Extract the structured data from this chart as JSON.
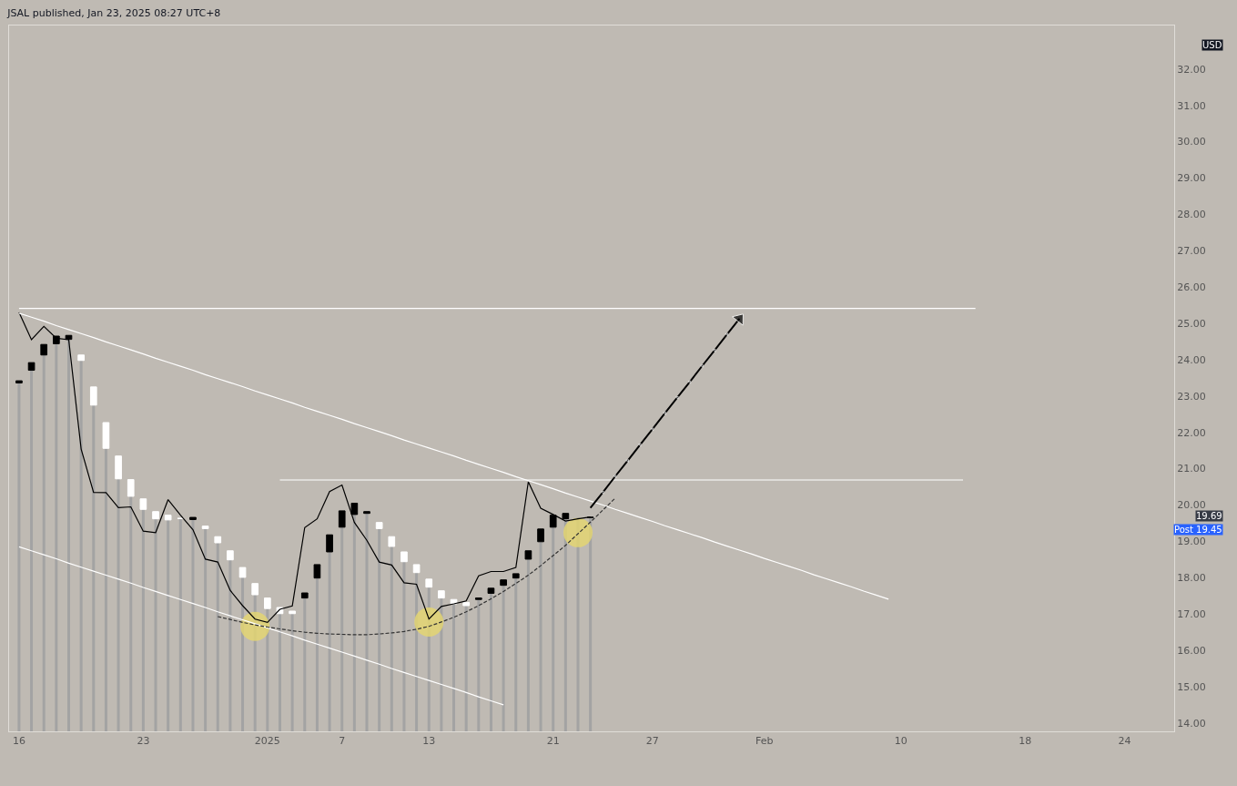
{
  "chart_data": {
    "type": "candlestick",
    "title": "JSAL published, Jan 23, 2025 08:27 UTC+8",
    "categories": [
      "16",
      null,
      null,
      null,
      null,
      null,
      null,
      null,
      null,
      null,
      "23",
      null,
      null,
      null,
      null,
      null,
      null,
      null,
      null,
      null,
      "2025",
      null,
      null,
      null,
      null,
      null,
      "7",
      null,
      null,
      null,
      null,
      null,
      null,
      "13",
      null,
      null,
      null,
      null,
      null,
      null,
      null,
      null,
      null,
      "21",
      null,
      null,
      null,
      null,
      null,
      null,
      null,
      "27",
      null,
      null,
      null,
      null,
      null,
      null,
      null,
      null,
      "Feb",
      null,
      null,
      null,
      null,
      null,
      null,
      null,
      null,
      null,
      null,
      "10",
      null,
      null,
      null,
      null,
      null,
      null,
      null,
      null,
      null,
      "18",
      null,
      null,
      null,
      null,
      null,
      null,
      null,
      "24",
      null,
      null,
      null,
      null
    ],
    "ohlc": [
      [
        23.36,
        23.42,
        23.36,
        23.42
      ],
      [
        23.71,
        23.92,
        23.71,
        23.92
      ],
      [
        24.13,
        24.42,
        24.13,
        24.42
      ],
      [
        24.44,
        24.65,
        24.44,
        24.65
      ],
      [
        24.56,
        24.67,
        24.56,
        24.67
      ],
      [
        24.13,
        24.13,
        23.98,
        23.98
      ],
      [
        23.25,
        23.25,
        22.75,
        22.75
      ],
      [
        22.27,
        22.27,
        21.56,
        21.56
      ],
      [
        21.35,
        21.35,
        20.72,
        20.72
      ],
      [
        20.7,
        20.7,
        20.24,
        20.24
      ],
      [
        20.17,
        20.17,
        19.88,
        19.88
      ],
      [
        19.82,
        19.82,
        19.62,
        19.62
      ],
      [
        19.72,
        19.72,
        19.59,
        19.59
      ],
      [
        19.63,
        19.63,
        19.63,
        19.63
      ],
      [
        19.6,
        19.66,
        19.6,
        19.66
      ],
      [
        19.42,
        19.42,
        19.35,
        19.35
      ],
      [
        19.13,
        19.13,
        18.96,
        18.96
      ],
      [
        18.74,
        18.74,
        18.49,
        18.49
      ],
      [
        18.28,
        18.28,
        18.01,
        18.01
      ],
      [
        17.84,
        17.84,
        17.53,
        17.53
      ],
      [
        17.44,
        17.44,
        17.15,
        17.15
      ],
      [
        17.18,
        17.18,
        17.01,
        17.01
      ],
      [
        17.08,
        17.08,
        17.01,
        17.01
      ],
      [
        17.44,
        17.58,
        17.44,
        17.58
      ],
      [
        17.99,
        18.36,
        17.99,
        18.36
      ],
      [
        18.71,
        19.18,
        18.71,
        19.18
      ],
      [
        19.39,
        19.84,
        19.39,
        19.84
      ],
      [
        19.74,
        20.05,
        19.74,
        20.05
      ],
      [
        19.77,
        19.82,
        19.77,
        19.82
      ],
      [
        19.52,
        19.52,
        19.35,
        19.35
      ],
      [
        19.13,
        19.13,
        18.86,
        18.86
      ],
      [
        18.71,
        18.71,
        18.44,
        18.44
      ],
      [
        18.36,
        18.36,
        18.14,
        18.14
      ],
      [
        17.96,
        17.96,
        17.74,
        17.74
      ],
      [
        17.64,
        17.64,
        17.44,
        17.44
      ],
      [
        17.4,
        17.4,
        17.28,
        17.28
      ],
      [
        17.32,
        17.32,
        17.23,
        17.23
      ],
      [
        17.4,
        17.44,
        17.4,
        17.44
      ],
      [
        17.57,
        17.71,
        17.57,
        17.71
      ],
      [
        17.79,
        17.94,
        17.79,
        17.94
      ],
      [
        17.99,
        18.11,
        17.99,
        18.11
      ],
      [
        18.51,
        18.74,
        18.51,
        18.74
      ],
      [
        18.99,
        19.34,
        18.99,
        19.34
      ],
      [
        19.39,
        19.72,
        19.39,
        19.72
      ],
      [
        19.62,
        19.77,
        19.62,
        19.77
      ],
      null,
      [
        19.66,
        19.66,
        19.66,
        19.66
      ],
      null,
      null,
      null,
      null,
      null,
      null,
      null,
      null,
      null,
      null,
      null,
      null,
      null,
      null,
      null,
      null,
      null,
      null,
      null,
      null,
      null,
      null,
      null,
      null,
      null,
      null,
      null,
      null,
      null,
      null,
      null,
      null,
      null,
      null,
      null,
      null,
      null,
      null,
      null,
      null,
      null,
      null,
      null,
      null,
      null,
      null,
      null
    ],
    "colors": [
      "#000000",
      "#000000",
      "#000000",
      "#000000",
      "#000000",
      "#ffffff",
      "#ffffff",
      "#ffffff",
      "#ffffff",
      "#ffffff",
      "#ffffff",
      "#ffffff",
      "#ffffff",
      "#ffffff",
      "#000000",
      "#ffffff",
      "#ffffff",
      "#ffffff",
      "#ffffff",
      "#ffffff",
      "#ffffff",
      "#ffffff",
      "#ffffff",
      "#000000",
      "#000000",
      "#000000",
      "#000000",
      "#000000",
      "#000000",
      "#ffffff",
      "#ffffff",
      "#ffffff",
      "#ffffff",
      "#ffffff",
      "#ffffff",
      "#ffffff",
      "#ffffff",
      "#000000",
      "#000000",
      "#000000",
      "#000000",
      "#000000",
      "#000000",
      "#000000",
      "#000000",
      null,
      "#000000",
      null,
      null,
      null,
      null,
      null,
      null,
      null,
      null,
      null,
      null,
      null,
      null,
      null,
      null,
      null,
      null,
      null,
      null,
      null,
      null,
      null,
      null,
      null,
      null,
      null,
      null,
      null,
      null,
      null,
      null,
      null,
      null,
      null,
      null,
      null,
      null,
      null,
      null,
      null,
      null,
      null,
      null,
      null,
      null,
      null,
      null,
      null
    ],
    "series": [
      {
        "type": "bar",
        "color": "#a3a3a3",
        "values": [
          23.36,
          23.71,
          24.13,
          24.44,
          24.56,
          23.98,
          22.75,
          21.56,
          20.72,
          20.24,
          19.88,
          19.62,
          19.59,
          19.63,
          19.6,
          19.35,
          18.96,
          18.49,
          18.01,
          17.53,
          17.15,
          17.01,
          17.01,
          17.44,
          17.99,
          18.71,
          19.39,
          19.74,
          19.77,
          19.35,
          18.86,
          18.44,
          18.14,
          17.74,
          17.44,
          17.28,
          17.23,
          17.4,
          17.57,
          17.79,
          17.99,
          18.51,
          18.99,
          19.39,
          19.62,
          19.66,
          19.66,
          null,
          null,
          null,
          null,
          null,
          null,
          null,
          null,
          null,
          null,
          null,
          null,
          null,
          null,
          null,
          null,
          null,
          null,
          null,
          null,
          null,
          null,
          null,
          null,
          null,
          null,
          null,
          null,
          null,
          null,
          null,
          null,
          null,
          null,
          null,
          null,
          null,
          null,
          null,
          null,
          null,
          null,
          null,
          null,
          null,
          null,
          null
        ]
      },
      {
        "type": "line",
        "color": "#000000",
        "values": [
          25.3,
          24.55,
          24.92,
          24.59,
          24.55,
          21.54,
          20.35,
          20.34,
          19.93,
          19.95,
          19.28,
          19.24,
          20.15,
          19.72,
          19.32,
          18.51,
          18.43,
          17.65,
          17.23,
          16.86,
          16.77,
          17.13,
          17.22,
          19.38,
          19.62,
          20.37,
          20.55,
          19.52,
          19.03,
          18.43,
          18.35,
          17.86,
          17.82,
          16.86,
          17.21,
          17.28,
          17.36,
          18.05,
          18.17,
          18.17,
          18.28,
          20.64,
          19.91,
          19.74,
          19.56,
          19.62,
          19.67,
          null,
          null,
          null,
          null,
          null,
          null,
          null,
          null,
          null,
          null,
          null,
          null,
          null,
          null,
          null,
          null,
          null,
          null,
          null,
          null,
          null,
          null,
          null,
          null,
          null,
          null,
          null,
          null,
          null,
          null,
          null,
          null,
          null,
          null,
          null,
          null,
          null,
          null,
          null,
          null,
          null,
          null,
          null,
          null,
          null,
          null,
          null
        ]
      },
      {
        "type": "line",
        "color": "#ffffff",
        "values": [
          25.41,
          25.41,
          25.41,
          25.41,
          25.41,
          25.41,
          25.41,
          25.41,
          25.41,
          25.41,
          25.41,
          25.41,
          25.41,
          25.41,
          25.41,
          25.41,
          25.41,
          25.41,
          25.41,
          25.41,
          25.41,
          25.41,
          25.41,
          25.41,
          25.41,
          25.41,
          25.41,
          25.41,
          25.41,
          25.41,
          25.41,
          25.41,
          25.41,
          25.41,
          25.41,
          25.41,
          25.41,
          25.41,
          25.41,
          25.41,
          25.41,
          25.41,
          25.41,
          25.41,
          25.41,
          25.41,
          25.41,
          25.41,
          25.41,
          25.41,
          25.41,
          25.41,
          25.41,
          25.41,
          25.41,
          25.41,
          25.41,
          25.41,
          25.41,
          25.41,
          25.41,
          25.41,
          25.41,
          25.41,
          25.41,
          25.41,
          25.41,
          25.41,
          25.41,
          25.41,
          25.41,
          25.41,
          25.41,
          25.41,
          25.41,
          25.41,
          25.41,
          25.41,
          null,
          null,
          null,
          null,
          null,
          null,
          null,
          null,
          null,
          null,
          null,
          null,
          null,
          null,
          null,
          null
        ]
      },
      {
        "type": "line",
        "color": "#ffffff",
        "values": [
          null,
          null,
          null,
          null,
          null,
          null,
          null,
          null,
          null,
          null,
          null,
          null,
          null,
          null,
          null,
          null,
          null,
          null,
          null,
          null,
          null,
          20.69,
          20.69,
          20.69,
          20.69,
          20.69,
          20.69,
          20.69,
          20.69,
          20.69,
          20.69,
          20.69,
          20.69,
          20.69,
          20.69,
          20.69,
          20.69,
          20.69,
          20.69,
          20.69,
          20.69,
          20.69,
          20.69,
          20.69,
          20.69,
          20.69,
          20.69,
          20.69,
          20.69,
          20.69,
          20.69,
          20.69,
          20.69,
          20.69,
          20.69,
          20.69,
          20.69,
          20.69,
          20.69,
          20.69,
          20.69,
          20.69,
          20.69,
          20.69,
          20.69,
          20.69,
          20.69,
          20.69,
          20.69,
          20.69,
          20.69,
          20.69,
          20.69,
          20.69,
          20.69,
          20.69,
          20.69,
          null,
          null,
          null,
          null,
          null,
          null,
          null,
          null,
          null,
          null,
          null,
          null,
          null,
          null,
          null,
          null,
          null
        ]
      },
      {
        "type": "line",
        "color": "#ffffff",
        "values": [
          25.28,
          25.17,
          25.06,
          24.94,
          24.83,
          24.72,
          24.61,
          24.49,
          24.38,
          24.27,
          24.16,
          24.04,
          23.93,
          23.82,
          23.71,
          23.59,
          23.48,
          23.37,
          23.26,
          23.14,
          23.03,
          22.92,
          22.81,
          22.69,
          22.58,
          22.47,
          22.36,
          22.24,
          22.13,
          22.02,
          21.91,
          21.79,
          21.68,
          21.57,
          21.46,
          21.35,
          21.23,
          21.12,
          21.01,
          20.9,
          20.78,
          20.67,
          20.56,
          20.45,
          20.33,
          20.22,
          20.11,
          20.0,
          19.88,
          19.77,
          19.66,
          19.55,
          19.43,
          19.32,
          19.21,
          19.1,
          18.98,
          18.87,
          18.76,
          18.65,
          18.53,
          18.42,
          18.31,
          18.2,
          18.08,
          17.97,
          17.86,
          17.75,
          17.63,
          17.52,
          17.41,
          null,
          null,
          null,
          null,
          null,
          null,
          null,
          null,
          null,
          null,
          null,
          null,
          null,
          null,
          null,
          null,
          null,
          null,
          null,
          null,
          null,
          null,
          null
        ]
      },
      {
        "type": "line",
        "color": "#ffffff",
        "values": [
          18.85,
          18.74,
          18.63,
          18.52,
          18.4,
          18.29,
          18.18,
          18.07,
          17.96,
          17.85,
          17.73,
          17.62,
          17.51,
          17.4,
          17.29,
          17.18,
          17.06,
          16.95,
          16.84,
          16.73,
          16.62,
          16.51,
          16.4,
          16.28,
          16.17,
          16.06,
          15.95,
          15.84,
          15.73,
          15.62,
          15.5,
          15.39,
          15.28,
          15.17,
          15.06,
          14.95,
          14.84,
          14.72,
          14.61,
          14.5,
          null,
          null,
          null,
          null,
          null,
          null,
          null,
          null,
          null,
          null,
          null,
          null,
          null,
          null,
          null,
          null,
          null,
          null,
          null,
          null,
          null,
          null,
          null,
          null,
          null,
          null,
          null,
          null,
          null,
          null,
          null,
          null,
          null,
          null,
          null,
          null,
          null,
          null,
          null,
          null,
          null,
          null,
          null,
          null,
          null,
          null,
          null,
          null,
          null,
          null,
          null,
          null,
          null,
          null
        ]
      },
      {
        "type": "line",
        "color": "#333333",
        "line_style": "dashed",
        "values": [
          null,
          null,
          null,
          null,
          null,
          null,
          null,
          null,
          null,
          null,
          null,
          null,
          null,
          null,
          null,
          null,
          16.93,
          16.85,
          16.77,
          16.7,
          16.64,
          16.59,
          16.54,
          16.5,
          16.47,
          16.45,
          16.44,
          16.43,
          16.43,
          16.45,
          16.48,
          16.52,
          16.58,
          16.66,
          16.78,
          16.91,
          17.06,
          17.23,
          17.42,
          17.62,
          17.84,
          18.07,
          18.33,
          18.61,
          18.89,
          19.21,
          19.53,
          19.86,
          20.19,
          null,
          null,
          null,
          null,
          null,
          null,
          null,
          null,
          null,
          null,
          null,
          null,
          null,
          null,
          null,
          null,
          null,
          null,
          null,
          null,
          null,
          null,
          null,
          null,
          null,
          null,
          null,
          null,
          null,
          null,
          null,
          null,
          null,
          null,
          null,
          null,
          null,
          null,
          null,
          null,
          null,
          null,
          null,
          null,
          null
        ]
      },
      {
        "type": "line",
        "color": "#000000",
        "marker": "triangle",
        "values": [
          null,
          null,
          null,
          null,
          null,
          null,
          null,
          null,
          null,
          null,
          null,
          null,
          null,
          null,
          null,
          null,
          null,
          null,
          null,
          null,
          null,
          null,
          null,
          null,
          null,
          null,
          null,
          null,
          null,
          null,
          null,
          null,
          null,
          null,
          null,
          null,
          null,
          null,
          null,
          null,
          null,
          null,
          null,
          null,
          null,
          null,
          19.92,
          20.35,
          20.79,
          21.22,
          21.66,
          22.09,
          22.53,
          22.96,
          23.39,
          23.83,
          24.26,
          24.7,
          25.13,
          null,
          null,
          null,
          null,
          null,
          null,
          null,
          null,
          null,
          null,
          null,
          null,
          null,
          null,
          null,
          null,
          null,
          null,
          null,
          null,
          null,
          null,
          null,
          null,
          null,
          null,
          null,
          null,
          null,
          null,
          null,
          null,
          null,
          null,
          null
        ]
      },
      {
        "type": "scatter",
        "color": "#e6d76e",
        "values": [
          null,
          null,
          null,
          null,
          null,
          null,
          null,
          null,
          null,
          null,
          null,
          null,
          null,
          null,
          null,
          null,
          null,
          null,
          null,
          16.66,
          null,
          null,
          null,
          null,
          null,
          null,
          null,
          null,
          null,
          null,
          null,
          null,
          null,
          16.78,
          null,
          null,
          null,
          null,
          null,
          null,
          null,
          null,
          null,
          null,
          null,
          19.24,
          null,
          null,
          null,
          null,
          null,
          null,
          null,
          null,
          null,
          null,
          null,
          null,
          null,
          null,
          null,
          null,
          null,
          null,
          null,
          null,
          null,
          null,
          null,
          null,
          null,
          null,
          null,
          null,
          null,
          null,
          null,
          null,
          null,
          null,
          null,
          null,
          null,
          null,
          null,
          null,
          null,
          null,
          null,
          null,
          null,
          null,
          null,
          null
        ]
      }
    ],
    "annotations": [
      "USD",
      "19.69",
      "Post 19.45"
    ],
    "ylim": [
      13.77,
      33.2
    ],
    "yticks": [
      {
        "value": 14,
        "label": "14.00"
      },
      {
        "value": 15,
        "label": "15.00"
      },
      {
        "value": 16,
        "label": "16.00"
      },
      {
        "value": 17,
        "label": "17.00"
      },
      {
        "value": 18,
        "label": "18.00"
      },
      {
        "value": 19,
        "label": "19.00"
      },
      {
        "value": 20,
        "label": "20.00"
      },
      {
        "value": 21,
        "label": "21.00"
      },
      {
        "value": 22,
        "label": "22.00"
      },
      {
        "value": 23,
        "label": "23.00"
      },
      {
        "value": 24,
        "label": "24.00"
      },
      {
        "value": 25,
        "label": "25.00"
      },
      {
        "value": 26,
        "label": "26.00"
      },
      {
        "value": 27,
        "label": "27.00"
      },
      {
        "value": 28,
        "label": "28.00"
      },
      {
        "value": 29,
        "label": "29.00"
      },
      {
        "value": 30,
        "label": "30.00"
      },
      {
        "value": 31,
        "label": "31.00"
      },
      {
        "value": 32,
        "label": "32.00"
      }
    ],
    "grid": false
  }
}
